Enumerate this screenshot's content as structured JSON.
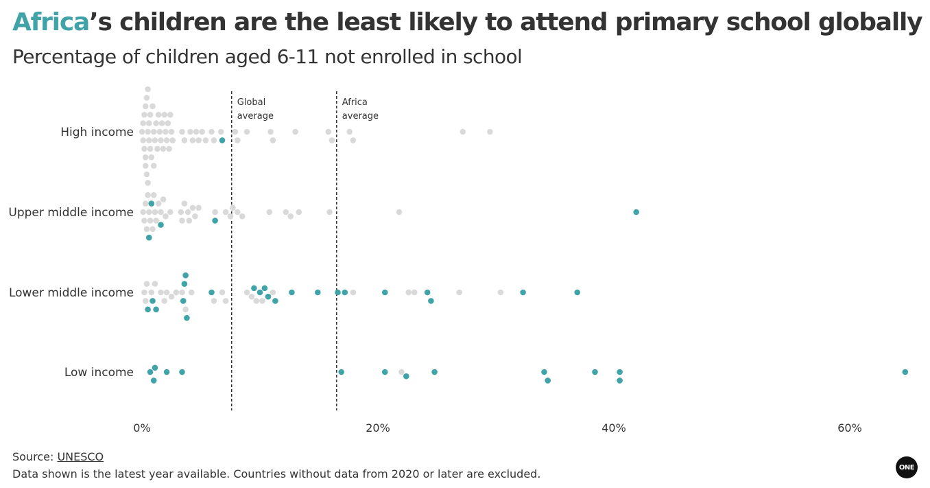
{
  "header": {
    "title_highlight": "Africa",
    "title_rest": "’s children are the least likely to attend primary school globally",
    "subtitle": "Percentage of children aged 6-11 not enrolled in school"
  },
  "footer": {
    "source_label": "Source: ",
    "source_link": "UNESCO",
    "note": "Data shown is the latest year available. Countries without data from 2020 or later are excluded."
  },
  "logo": {
    "text": "ONE"
  },
  "colors": {
    "africa": "#3fa3a8",
    "other": "#d9d9d9",
    "text": "#333333",
    "reference_line": "#333333"
  },
  "chart_data": {
    "type": "scatter",
    "subtype": "beeswarm",
    "x_unit": "%",
    "xlim": [
      -1,
      65
    ],
    "x_ticks": [
      0,
      20,
      40,
      60
    ],
    "x_tick_labels": [
      "0%",
      "20%",
      "40%",
      "60%"
    ],
    "categories": [
      "High income",
      "Upper middle income",
      "Lower middle income",
      "Low income"
    ],
    "reference_lines": [
      {
        "label_line1": "Global",
        "label_line2": "average",
        "x": 7.6
      },
      {
        "label_line1": "Africa",
        "label_line2": "average",
        "x": 16.5
      }
    ],
    "series": [
      {
        "category": "High income",
        "africa": [
          6.8
        ],
        "other": [
          0.0,
          0.1,
          0.1,
          0.2,
          0.2,
          0.3,
          0.3,
          0.3,
          0.4,
          0.4,
          0.5,
          0.5,
          0.5,
          0.6,
          0.6,
          0.7,
          0.7,
          0.8,
          0.9,
          1.0,
          1.0,
          1.1,
          1.2,
          1.3,
          1.4,
          1.5,
          1.6,
          1.7,
          1.8,
          1.9,
          2.0,
          2.1,
          2.2,
          2.3,
          2.4,
          2.5,
          2.6,
          3.4,
          3.6,
          4.1,
          4.3,
          4.6,
          4.8,
          5.1,
          5.4,
          5.9,
          6.1,
          6.7,
          7.9,
          8.1,
          8.9,
          10.9,
          11.1,
          13.0,
          15.8,
          16.1,
          17.6,
          17.9,
          27.2,
          29.5
        ]
      },
      {
        "category": "Upper middle income",
        "africa": [
          0.6,
          0.8,
          1.6,
          6.2,
          41.9
        ],
        "other": [
          0.1,
          0.2,
          0.3,
          0.4,
          0.5,
          0.6,
          0.7,
          0.9,
          1.0,
          1.1,
          1.2,
          1.4,
          1.6,
          1.8,
          2.0,
          2.4,
          3.3,
          3.4,
          3.6,
          3.9,
          4.0,
          4.3,
          4.5,
          4.8,
          6.2,
          7.1,
          7.5,
          7.7,
          8.1,
          8.5,
          10.8,
          12.2,
          12.6,
          13.3,
          15.9,
          21.8
        ]
      },
      {
        "category": "Lower middle income",
        "africa": [
          0.5,
          0.9,
          1.2,
          3.5,
          3.6,
          3.7,
          3.8,
          5.9,
          9.5,
          10.0,
          10.4,
          10.7,
          11.3,
          12.7,
          14.9,
          16.6,
          17.2,
          20.6,
          24.2,
          24.5,
          32.3,
          36.9
        ],
        "other": [
          0.2,
          0.3,
          0.4,
          0.8,
          1.1,
          1.6,
          1.9,
          2.1,
          2.5,
          2.9,
          3.4,
          3.7,
          4.2,
          6.1,
          6.8,
          7.1,
          8.9,
          9.3,
          9.7,
          10.2,
          11.1,
          17.9,
          22.6,
          23.1,
          26.9,
          30.4
        ]
      },
      {
        "category": "Low income",
        "africa": [
          0.7,
          1.0,
          1.1,
          2.1,
          3.4,
          16.9,
          20.6,
          22.4,
          24.8,
          34.1,
          34.4,
          38.4,
          40.5,
          40.5,
          64.7
        ],
        "other": [
          22.0
        ]
      }
    ]
  }
}
